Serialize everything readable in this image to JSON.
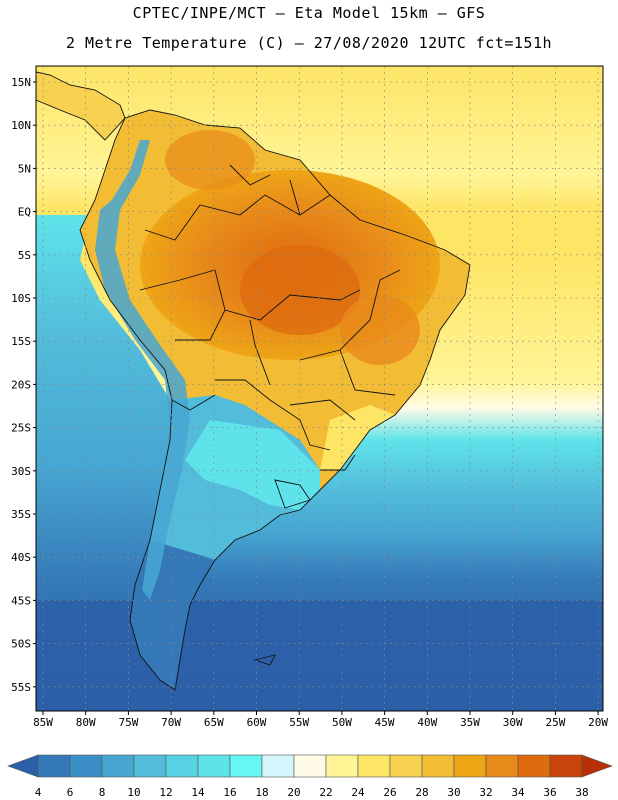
{
  "header": {
    "line1": "CPTEC/INPE/MCT –  Eta Model 15km – GFS",
    "line2": "2 Metre Temperature (C) – 27/08/2020 12UTC fct=151h"
  },
  "map": {
    "region": "South America",
    "lat_labels": [
      "15N",
      "10N",
      "5N",
      "EQ",
      "5S",
      "10S",
      "15S",
      "20S",
      "25S",
      "30S",
      "35S",
      "40S",
      "45S",
      "50S",
      "55S"
    ],
    "lon_labels": [
      "85W",
      "80W",
      "75W",
      "70W",
      "65W",
      "60W",
      "55W",
      "50W",
      "45W",
      "40W",
      "35W",
      "30W",
      "25W",
      "20W"
    ]
  },
  "colorbar": {
    "labels": [
      "4",
      "6",
      "8",
      "10",
      "12",
      "14",
      "16",
      "18",
      "20",
      "22",
      "24",
      "26",
      "28",
      "30",
      "32",
      "34",
      "36",
      "38"
    ],
    "colors": [
      "#2b5fa8",
      "#3478b8",
      "#3c8ec6",
      "#47a7d2",
      "#52bcda",
      "#56d2e2",
      "#5fe3ea",
      "#66f6f4",
      "#d2f6fb",
      "#fffbe6",
      "#fff597",
      "#fde566",
      "#f8d150",
      "#f2bd35",
      "#eea516",
      "#e88a1a",
      "#de6b0e",
      "#c9440b",
      "#b83008"
    ]
  },
  "colors": {
    "ocean_deep": "#2e62ab",
    "ocean_mid": "#3a85c0",
    "cool": "#52bcda",
    "cyan": "#5fe3ea",
    "warm_ocean": "#fde566",
    "land_hot": "#e88a1a",
    "land_very_hot": "#de6b0e",
    "border": "#111111"
  }
}
